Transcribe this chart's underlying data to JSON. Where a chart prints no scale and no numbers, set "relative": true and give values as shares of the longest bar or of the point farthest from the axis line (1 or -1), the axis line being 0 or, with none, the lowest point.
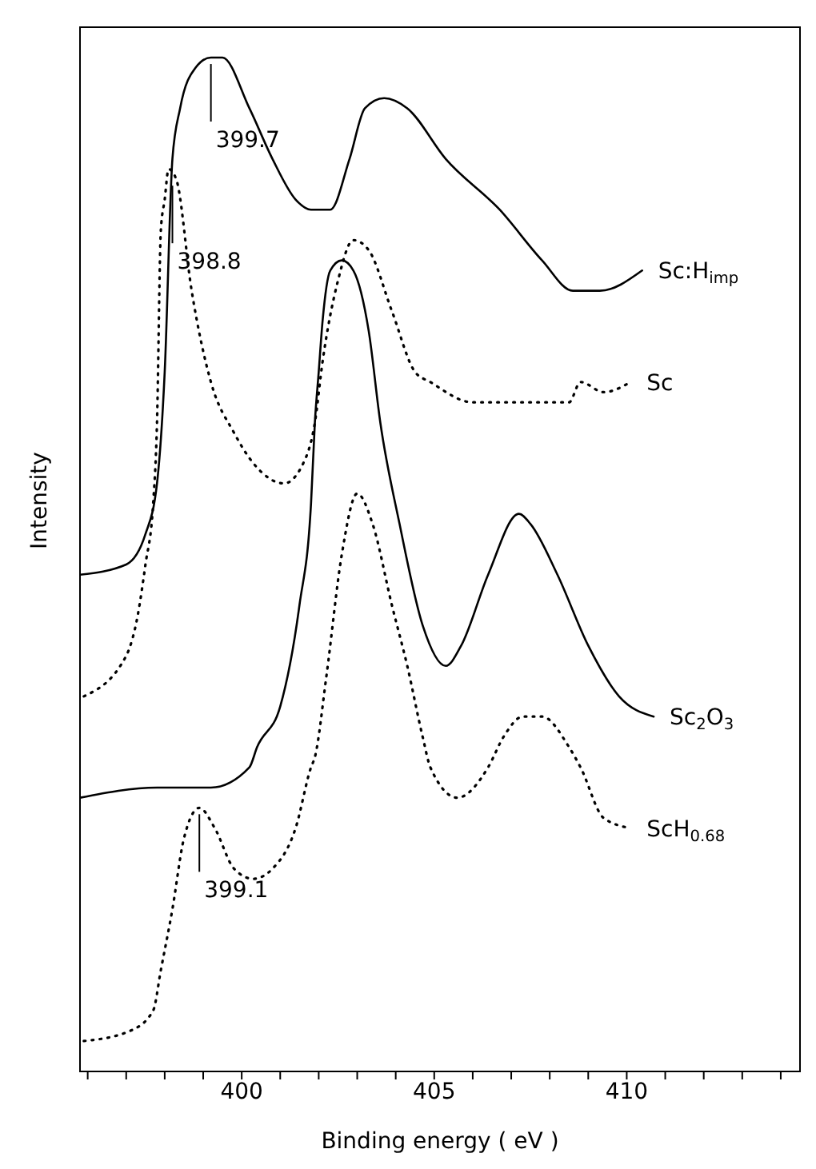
{
  "chart_data": {
    "type": "line",
    "xlabel": "Binding   energy  ( eV )",
    "ylabel": "Intensity",
    "relative": true,
    "marker": "none",
    "xlim": [
      395.8,
      414.5
    ],
    "xticks": [
      {
        "value": 396,
        "label": null
      },
      {
        "value": 397,
        "label": null
      },
      {
        "value": 398,
        "label": null
      },
      {
        "value": 399,
        "label": null
      },
      400,
      {
        "value": 401,
        "label": null
      },
      {
        "value": 402,
        "label": null
      },
      {
        "value": 403,
        "label": null
      },
      {
        "value": 404,
        "label": null
      },
      405,
      {
        "value": 406,
        "label": null
      },
      {
        "value": 407,
        "label": null
      },
      {
        "value": 408,
        "label": null
      },
      {
        "value": 409,
        "label": null
      },
      410,
      {
        "value": 411,
        "label": null
      },
      {
        "value": 412,
        "label": null
      },
      {
        "value": 413,
        "label": null
      },
      {
        "value": 414,
        "label": null
      }
    ],
    "series": [
      {
        "name": "Sc:H$_{imp}$",
        "color": "#000000",
        "line_style": "solid",
        "x": [
          395.8,
          397.0,
          397.5,
          397.8,
          398.0,
          398.2,
          398.4,
          398.8,
          399.2,
          399.5,
          400.2,
          400.8,
          401.4,
          401.8,
          402.3,
          402.8,
          403.2,
          403.7,
          404.3,
          405.3,
          406.7,
          407.8,
          408.6,
          409.3,
          410.4
        ],
        "values": [
          0.49,
          0.5,
          0.53,
          0.58,
          0.69,
          0.9,
          0.95,
          0.99,
          1.0,
          1.0,
          0.95,
          0.9,
          0.86,
          0.85,
          0.85,
          0.9,
          0.95,
          0.96,
          0.95,
          0.9,
          0.85,
          0.8,
          0.77,
          0.77,
          0.79
        ]
      },
      {
        "name": "Sc",
        "color": "#000000",
        "line_style": "dotted",
        "x": [
          395.9,
          397.0,
          397.3,
          397.5,
          397.7,
          397.8,
          397.9,
          398.0,
          398.1,
          398.3,
          398.7,
          399.2,
          399.8,
          400.3,
          401.1,
          401.6,
          401.9,
          402.1,
          402.5,
          402.9,
          403.3,
          403.9,
          404.5,
          404.9,
          406.0,
          406.8,
          407.4,
          408.5,
          408.8,
          409.4,
          410.1
        ],
        "values": [
          0.37,
          0.41,
          0.45,
          0.5,
          0.56,
          0.64,
          0.83,
          0.86,
          0.89,
          0.88,
          0.77,
          0.68,
          0.63,
          0.6,
          0.58,
          0.6,
          0.64,
          0.7,
          0.78,
          0.82,
          0.81,
          0.75,
          0.69,
          0.68,
          0.66,
          0.66,
          0.66,
          0.66,
          0.68,
          0.67,
          0.68
        ]
      },
      {
        "name": "Sc$_{2}$O$_{3}$",
        "color": "#000000",
        "line_style": "solid",
        "x": [
          395.8,
          397.8,
          399.2,
          400.2,
          400.4,
          401.0,
          401.5,
          401.8,
          401.9,
          402.0,
          402.1,
          402.3,
          402.6,
          402.9,
          403.3,
          403.6,
          404.1,
          404.7,
          405.3,
          405.7,
          406.4,
          407.2,
          407.5,
          408.2,
          409.0,
          409.8,
          410.7
        ],
        "values": [
          0.27,
          0.28,
          0.28,
          0.3,
          0.32,
          0.36,
          0.46,
          0.56,
          0.64,
          0.69,
          0.74,
          0.79,
          0.8,
          0.79,
          0.73,
          0.64,
          0.54,
          0.44,
          0.4,
          0.42,
          0.49,
          0.55,
          0.54,
          0.49,
          0.42,
          0.37,
          0.35
        ]
      },
      {
        "name": "ScH$_{0.68}$",
        "color": "#000000",
        "line_style": "dotted",
        "x": [
          395.9,
          397.1,
          397.7,
          397.9,
          398.2,
          398.5,
          398.9,
          399.3,
          399.8,
          400.3,
          400.8,
          401.4,
          401.8,
          401.9,
          402.2,
          402.6,
          403.0,
          403.4,
          403.9,
          404.3,
          404.7,
          404.9,
          405.6,
          406.4,
          406.8,
          407.3,
          407.8,
          408.5,
          408.8,
          409.4,
          410.1
        ],
        "values": [
          0.03,
          0.04,
          0.06,
          0.1,
          0.16,
          0.23,
          0.26,
          0.24,
          0.2,
          0.19,
          0.2,
          0.24,
          0.3,
          0.31,
          0.39,
          0.51,
          0.57,
          0.54,
          0.46,
          0.4,
          0.33,
          0.3,
          0.27,
          0.3,
          0.33,
          0.35,
          0.35,
          0.32,
          0.3,
          0.25,
          0.24
        ]
      }
    ],
    "annotations": [
      {
        "text": "399.7",
        "x": 399.2,
        "y": 1.0
      },
      {
        "text": "398.8",
        "x": 398.2,
        "y": 0.88
      },
      {
        "text": "399.1",
        "x": 398.9,
        "y": 0.26
      }
    ]
  }
}
